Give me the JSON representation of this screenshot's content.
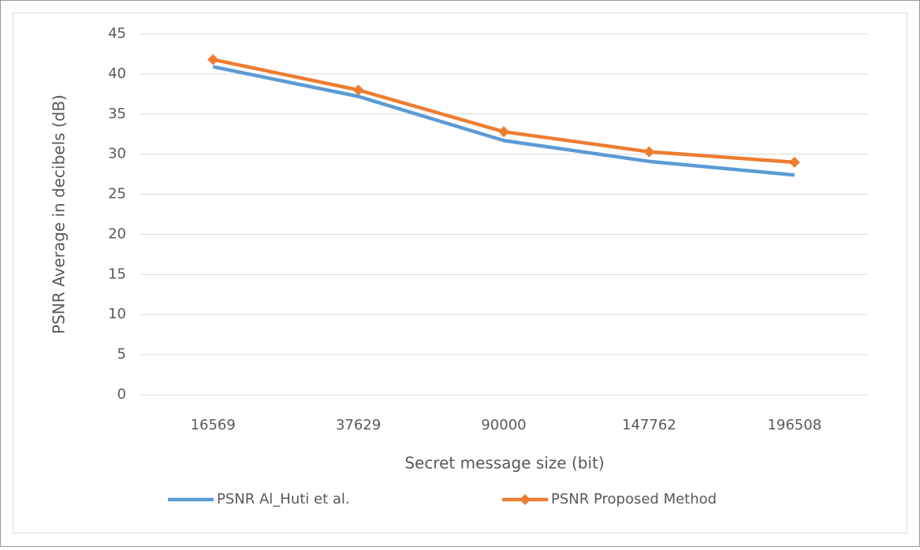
{
  "chart_data": {
    "type": "line",
    "categories": [
      "16569",
      "37629",
      "90000",
      "147762",
      "196508"
    ],
    "series": [
      {
        "name": "PSNR Al_Huti et al.",
        "color": "#5b9bd5",
        "values": [
          40.9,
          37.2,
          31.7,
          29.1,
          27.4
        ]
      },
      {
        "name": "PSNR Proposed Method",
        "color": "#ed7d31",
        "values": [
          41.8,
          38.0,
          32.8,
          30.3,
          29.0
        ],
        "marker": "diamond"
      }
    ],
    "x_label": "Secret message size (bit)",
    "y_label": "PSNR Average in decibels (dB)",
    "ylim": [
      0,
      45
    ],
    "yticks": [
      0,
      5,
      10,
      15,
      20,
      25,
      30,
      35,
      40,
      45
    ],
    "grid": true,
    "legend": "bottom"
  }
}
